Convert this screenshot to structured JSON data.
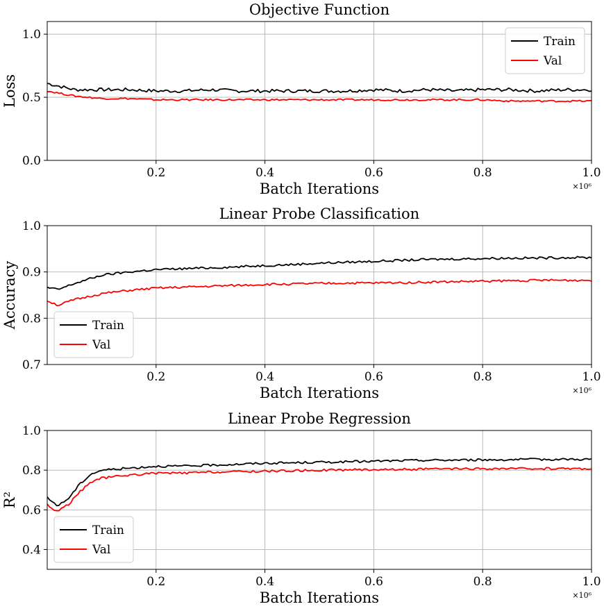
{
  "chart_data": [
    {
      "type": "line",
      "title": "Objective Function",
      "xlabel": "Batch Iterations",
      "ylabel": "Loss",
      "x_multiplier": "×10⁶",
      "xlim": [
        0.0,
        1.0
      ],
      "ylim": [
        0.0,
        1.1
      ],
      "xticks": [
        0.2,
        0.4,
        0.6,
        0.8,
        1.0
      ],
      "xtick_labels": [
        "0.2",
        "0.4",
        "0.6",
        "0.8",
        "1.0"
      ],
      "yticks": [
        0.0,
        0.5,
        1.0
      ],
      "ytick_labels": [
        "0.0",
        "0.5",
        "1.0"
      ],
      "grid": true,
      "legend": "top-right",
      "series": [
        {
          "name": "Train",
          "color": "#000000",
          "x": [
            0.0,
            0.05,
            0.1,
            0.15,
            0.2,
            0.25,
            0.3,
            0.35,
            0.4,
            0.45,
            0.5,
            0.55,
            0.6,
            0.65,
            0.7,
            0.75,
            0.8,
            0.85,
            0.9,
            0.95,
            1.0
          ],
          "y": [
            0.61,
            0.56,
            0.56,
            0.56,
            0.55,
            0.55,
            0.56,
            0.55,
            0.55,
            0.55,
            0.55,
            0.55,
            0.56,
            0.55,
            0.56,
            0.55,
            0.56,
            0.56,
            0.55,
            0.56,
            0.56
          ]
        },
        {
          "name": "Val",
          "color": "#ff0000",
          "x": [
            0.0,
            0.05,
            0.1,
            0.15,
            0.2,
            0.25,
            0.3,
            0.35,
            0.4,
            0.45,
            0.5,
            0.55,
            0.6,
            0.65,
            0.7,
            0.75,
            0.8,
            0.85,
            0.9,
            0.95,
            1.0
          ],
          "y": [
            0.55,
            0.51,
            0.49,
            0.49,
            0.48,
            0.48,
            0.48,
            0.48,
            0.48,
            0.48,
            0.48,
            0.48,
            0.48,
            0.48,
            0.48,
            0.48,
            0.48,
            0.47,
            0.47,
            0.47,
            0.47
          ]
        }
      ]
    },
    {
      "type": "line",
      "title": "Linear Probe Classification",
      "xlabel": "Batch Iterations",
      "ylabel": "Accuracy",
      "x_multiplier": "×10⁶",
      "xlim": [
        0.0,
        1.0
      ],
      "ylim": [
        0.7,
        1.0
      ],
      "xticks": [
        0.2,
        0.4,
        0.6,
        0.8,
        1.0
      ],
      "xtick_labels": [
        "0.2",
        "0.4",
        "0.6",
        "0.8",
        "1.0"
      ],
      "yticks": [
        0.7,
        0.8,
        0.9,
        1.0
      ],
      "ytick_labels": [
        "0.7",
        "0.8",
        "0.9",
        "1.0"
      ],
      "grid": true,
      "legend": "bottom-left",
      "series": [
        {
          "name": "Train",
          "color": "#000000",
          "x": [
            0.0,
            0.02,
            0.05,
            0.1,
            0.15,
            0.2,
            0.25,
            0.3,
            0.35,
            0.4,
            0.45,
            0.5,
            0.55,
            0.6,
            0.65,
            0.7,
            0.75,
            0.8,
            0.85,
            0.9,
            0.95,
            1.0
          ],
          "y": [
            0.866,
            0.862,
            0.875,
            0.893,
            0.9,
            0.905,
            0.907,
            0.909,
            0.911,
            0.914,
            0.916,
            0.919,
            0.921,
            0.923,
            0.925,
            0.927,
            0.928,
            0.929,
            0.93,
            0.93,
            0.931,
            0.931
          ]
        },
        {
          "name": "Val",
          "color": "#ff0000",
          "x": [
            0.0,
            0.02,
            0.05,
            0.1,
            0.15,
            0.2,
            0.25,
            0.3,
            0.35,
            0.4,
            0.45,
            0.5,
            0.55,
            0.6,
            0.65,
            0.7,
            0.75,
            0.8,
            0.85,
            0.9,
            0.95,
            1.0
          ],
          "y": [
            0.838,
            0.828,
            0.84,
            0.853,
            0.86,
            0.865,
            0.867,
            0.869,
            0.871,
            0.873,
            0.874,
            0.875,
            0.876,
            0.876,
            0.877,
            0.878,
            0.879,
            0.88,
            0.881,
            0.882,
            0.882,
            0.882
          ]
        }
      ]
    },
    {
      "type": "line",
      "title": "Linear Probe Regression",
      "xlabel": "Batch Iterations",
      "ylabel": "R²",
      "x_multiplier": "×10⁶",
      "xlim": [
        0.0,
        1.0
      ],
      "ylim": [
        0.3,
        1.0
      ],
      "xticks": [
        0.2,
        0.4,
        0.6,
        0.8,
        1.0
      ],
      "xtick_labels": [
        "0.2",
        "0.4",
        "0.6",
        "0.8",
        "1.0"
      ],
      "yticks": [
        0.4,
        0.6,
        0.8,
        1.0
      ],
      "ytick_labels": [
        "0.4",
        "0.6",
        "0.8",
        "1.0"
      ],
      "grid": true,
      "legend": "bottom-left",
      "series": [
        {
          "name": "Train",
          "color": "#000000",
          "x": [
            0.0,
            0.01,
            0.02,
            0.04,
            0.06,
            0.08,
            0.1,
            0.15,
            0.2,
            0.25,
            0.3,
            0.35,
            0.4,
            0.45,
            0.5,
            0.55,
            0.6,
            0.65,
            0.7,
            0.75,
            0.8,
            0.85,
            0.9,
            0.95,
            1.0
          ],
          "y": [
            0.66,
            0.64,
            0.62,
            0.66,
            0.73,
            0.78,
            0.8,
            0.81,
            0.82,
            0.82,
            0.825,
            0.83,
            0.835,
            0.837,
            0.84,
            0.842,
            0.845,
            0.848,
            0.85,
            0.851,
            0.852,
            0.853,
            0.854,
            0.855,
            0.855
          ]
        },
        {
          "name": "Val",
          "color": "#ff0000",
          "x": [
            0.0,
            0.01,
            0.02,
            0.04,
            0.06,
            0.08,
            0.1,
            0.15,
            0.2,
            0.25,
            0.3,
            0.35,
            0.4,
            0.45,
            0.5,
            0.55,
            0.6,
            0.65,
            0.7,
            0.75,
            0.8,
            0.85,
            0.9,
            0.95,
            1.0
          ],
          "y": [
            0.63,
            0.6,
            0.595,
            0.63,
            0.69,
            0.74,
            0.76,
            0.775,
            0.785,
            0.785,
            0.79,
            0.792,
            0.795,
            0.797,
            0.8,
            0.802,
            0.803,
            0.804,
            0.805,
            0.806,
            0.807,
            0.807,
            0.808,
            0.808,
            0.808
          ]
        }
      ]
    }
  ]
}
